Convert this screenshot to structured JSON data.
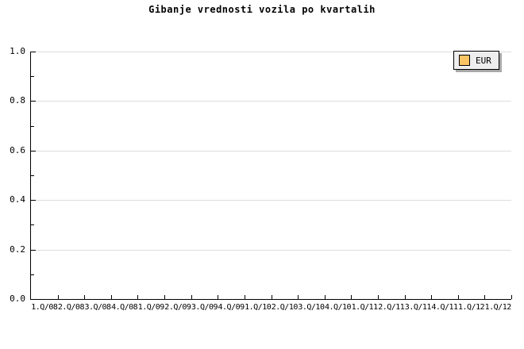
{
  "chart_data": {
    "type": "bar",
    "title": "Gibanje vrednosti vozila po kvartalih",
    "categories": [
      "1.Q/08",
      "2.Q/08",
      "3.Q/08",
      "4.Q/08",
      "1.Q/09",
      "2.Q/09",
      "3.Q/09",
      "4.Q/09",
      "1.Q/10",
      "2.Q/10",
      "3.Q/10",
      "4.Q/10",
      "1.Q/11",
      "2.Q/11",
      "3.Q/11",
      "4.Q/11",
      "1.Q/12",
      "1.Q/12"
    ],
    "series": [
      {
        "name": "EUR",
        "color": "#fbc565",
        "values": []
      }
    ],
    "xlabel": "",
    "ylabel": "",
    "ylim": [
      0.0,
      1.0
    ],
    "y_tick_values": [
      0.0,
      0.2,
      0.4,
      0.6,
      0.8,
      1.0
    ],
    "y_tick_labels": [
      "0.0",
      "0.2",
      "0.4",
      "0.6",
      "0.8",
      "1.0"
    ],
    "y_minor_tick_step": 0.1,
    "grid": "horizontal major gridlines only",
    "legend_position": "top-right",
    "plot_empty": true
  },
  "colors": {
    "background": "#ffffff",
    "axis": "#000000",
    "text": "#000000",
    "gridline": "#dddddd",
    "legend_background": "#eeeeee",
    "legend_border": "#000000",
    "legend_shadow": "#a8a8a8",
    "series_eur": "#fbc565"
  }
}
